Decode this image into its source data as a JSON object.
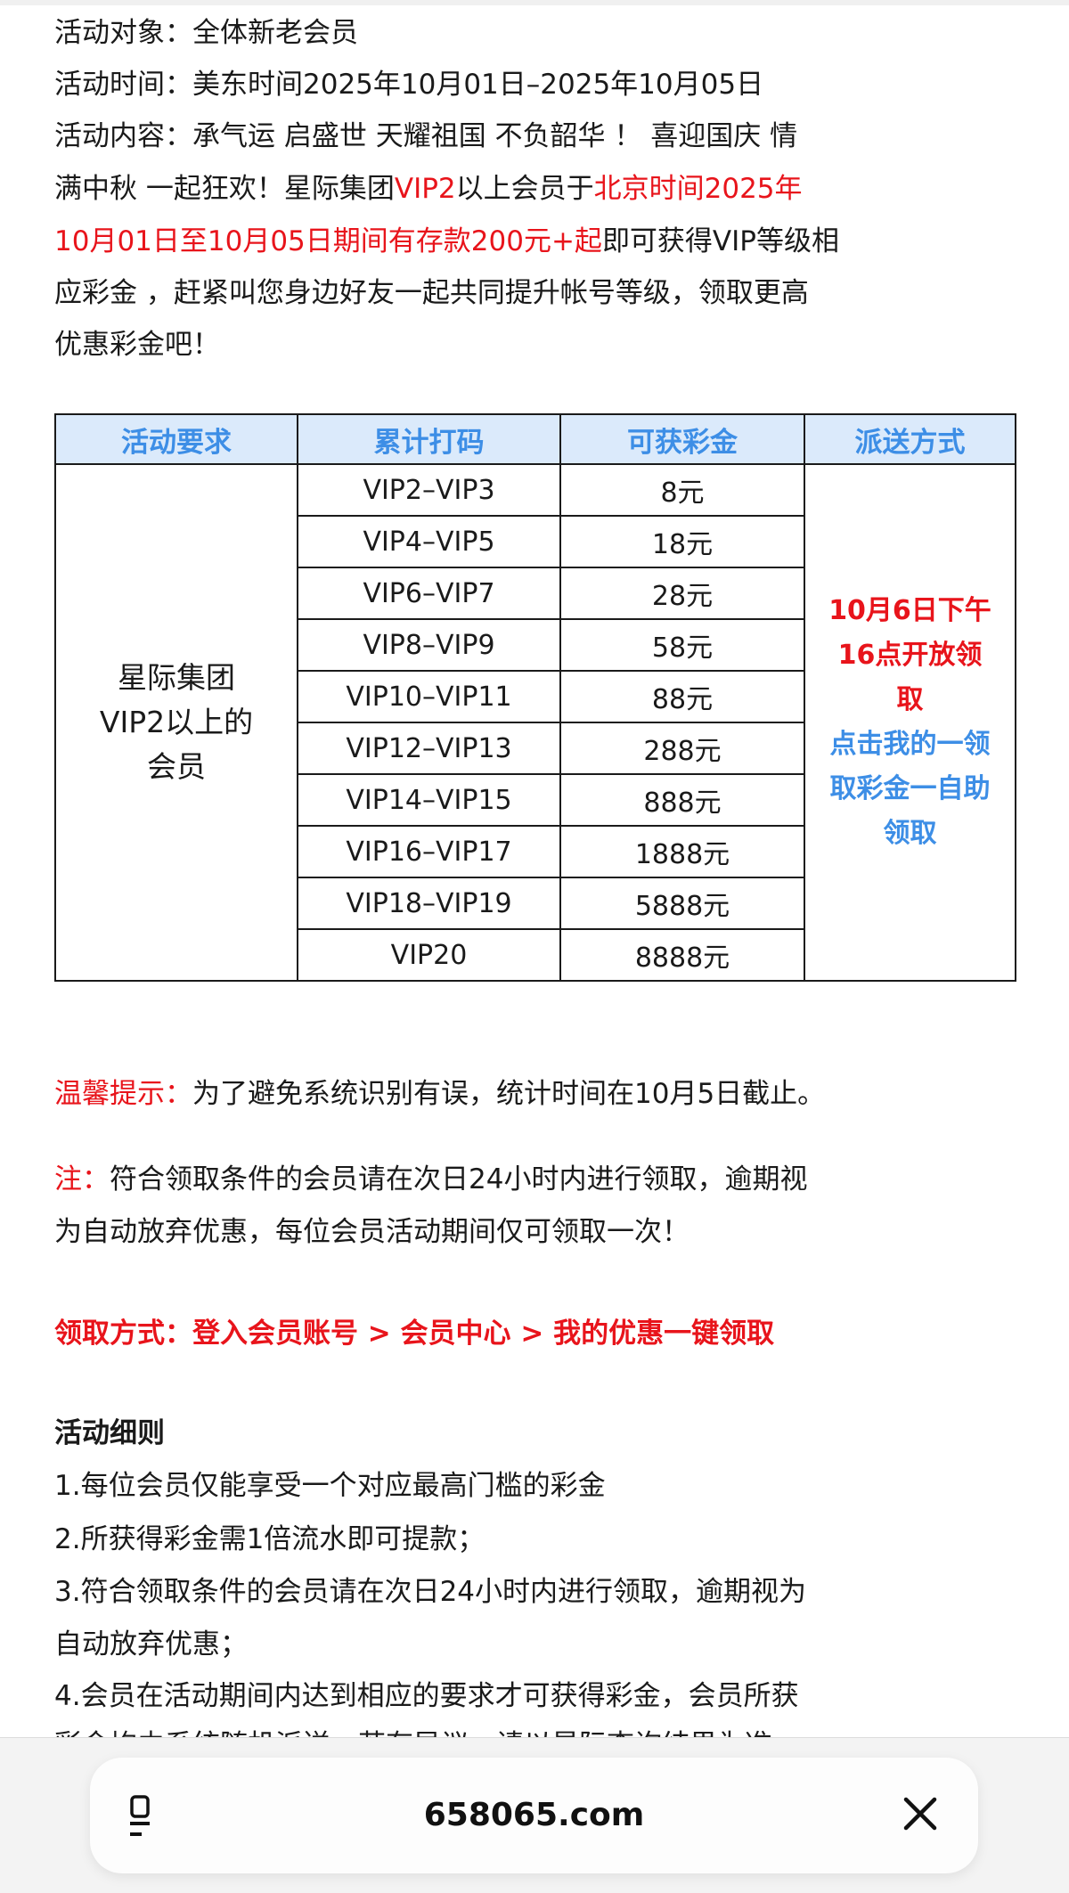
{
  "intro": {
    "line1": "活动对象：全体新老会员",
    "line2": "活动时间：美东时间2025年10月01日–2025年10月05日",
    "line3": "活动内容：承气运 启盛世 天耀祖国 不负韶华 ！ 喜迎国庆 情",
    "line4_a": "满中秋 一起狂欢！星际集团",
    "line4_b": "VIP2",
    "line4_c": "以上会员于",
    "line4_d": "北京时间2025年",
    "line5_a": "10月01日至10月05日期间有存款200元+起",
    "line5_b": "即可获得VIP等级相",
    "line6": "应彩金 ，赶紧叫您身边好友一起共同提升帐号等级，领取更高",
    "line7": "优惠彩金吧！"
  },
  "table": {
    "headers": [
      "活动要求",
      "累计打码",
      "可获彩金",
      "派送方式"
    ],
    "requirement": [
      "星际集团",
      "VIP2以上的",
      "会员"
    ],
    "rows": [
      {
        "level": "VIP2–VIP3",
        "bonus": "8元"
      },
      {
        "level": "VIP4–VIP5",
        "bonus": "18元"
      },
      {
        "level": "VIP6–VIP7",
        "bonus": "28元"
      },
      {
        "level": "VIP8–VIP9",
        "bonus": "58元"
      },
      {
        "level": "VIP10–VIP11",
        "bonus": "88元"
      },
      {
        "level": "VIP12–VIP13",
        "bonus": "288元"
      },
      {
        "level": "VIP14–VIP15",
        "bonus": "888元"
      },
      {
        "level": "VIP16–VIP17",
        "bonus": "1888元"
      },
      {
        "level": "VIP18–VIP19",
        "bonus": "5888元"
      },
      {
        "level": "VIP20",
        "bonus": "8888元"
      }
    ],
    "distribution_red": [
      "10月6日下午",
      "16点开放领",
      "取"
    ],
    "distribution_blue": [
      "点击我的一领",
      "取彩金一自助",
      "领取"
    ]
  },
  "tip": {
    "label": "温馨提示：",
    "text": "为了避免系统识别有误，统计时间在10月5日截止。"
  },
  "note": {
    "label": "注：",
    "line1": "符合领取条件的会员请在次日24小时内进行领取，逾期视",
    "line2": "为自动放弃优惠，每位会员活动期间仅可领取一次！"
  },
  "claim": "领取方式：登入会员账号 > 会员中心 > 我的优惠一键领取",
  "rules": {
    "title": "活动细则",
    "lines": [
      "1.每位会员仅能享受一个对应最高门槛的彩金",
      "2.所获得彩金需1倍流水即可提款；",
      "3.符合领取条件的会员请在次日24小时内进行领取，逾期视为",
      "自动放弃优惠；",
      "4.会员在活动期间内达到相应的要求才可获得彩金，会员所获",
      "彩金均由系统随机派送，若有异议，请以星际查询结果为准"
    ]
  },
  "browser": {
    "url": "658065.com",
    "colors": {
      "red": "#e8141b",
      "blue": "#3d8ee6",
      "header_bg": "#dbeafb"
    }
  }
}
